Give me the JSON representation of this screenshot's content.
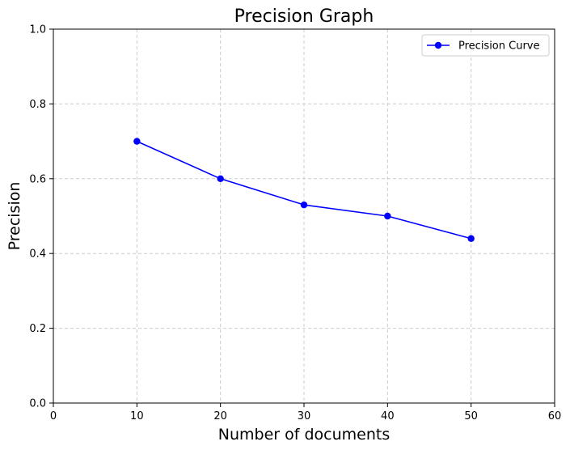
{
  "chart_data": {
    "type": "line",
    "title": "Precision Graph",
    "xlabel": "Number of documents",
    "ylabel": "Precision",
    "xlim": [
      0,
      60
    ],
    "ylim": [
      0,
      1.0
    ],
    "x_ticks": [
      0,
      10,
      20,
      30,
      40,
      50,
      60
    ],
    "y_ticks": [
      0.0,
      0.2,
      0.4,
      0.6,
      0.8,
      1.0
    ],
    "x_tick_labels": [
      "0",
      "10",
      "20",
      "30",
      "40",
      "50",
      "60"
    ],
    "y_tick_labels": [
      "0.0",
      "0.2",
      "0.4",
      "0.6",
      "0.8",
      "1.0"
    ],
    "grid": true,
    "legend_position": "top-right",
    "series": [
      {
        "name": "Precision Curve",
        "color": "#0000ff",
        "marker": "circle",
        "x": [
          10,
          20,
          30,
          40,
          50
        ],
        "y": [
          0.7,
          0.6,
          0.53,
          0.5,
          0.44
        ]
      }
    ]
  }
}
